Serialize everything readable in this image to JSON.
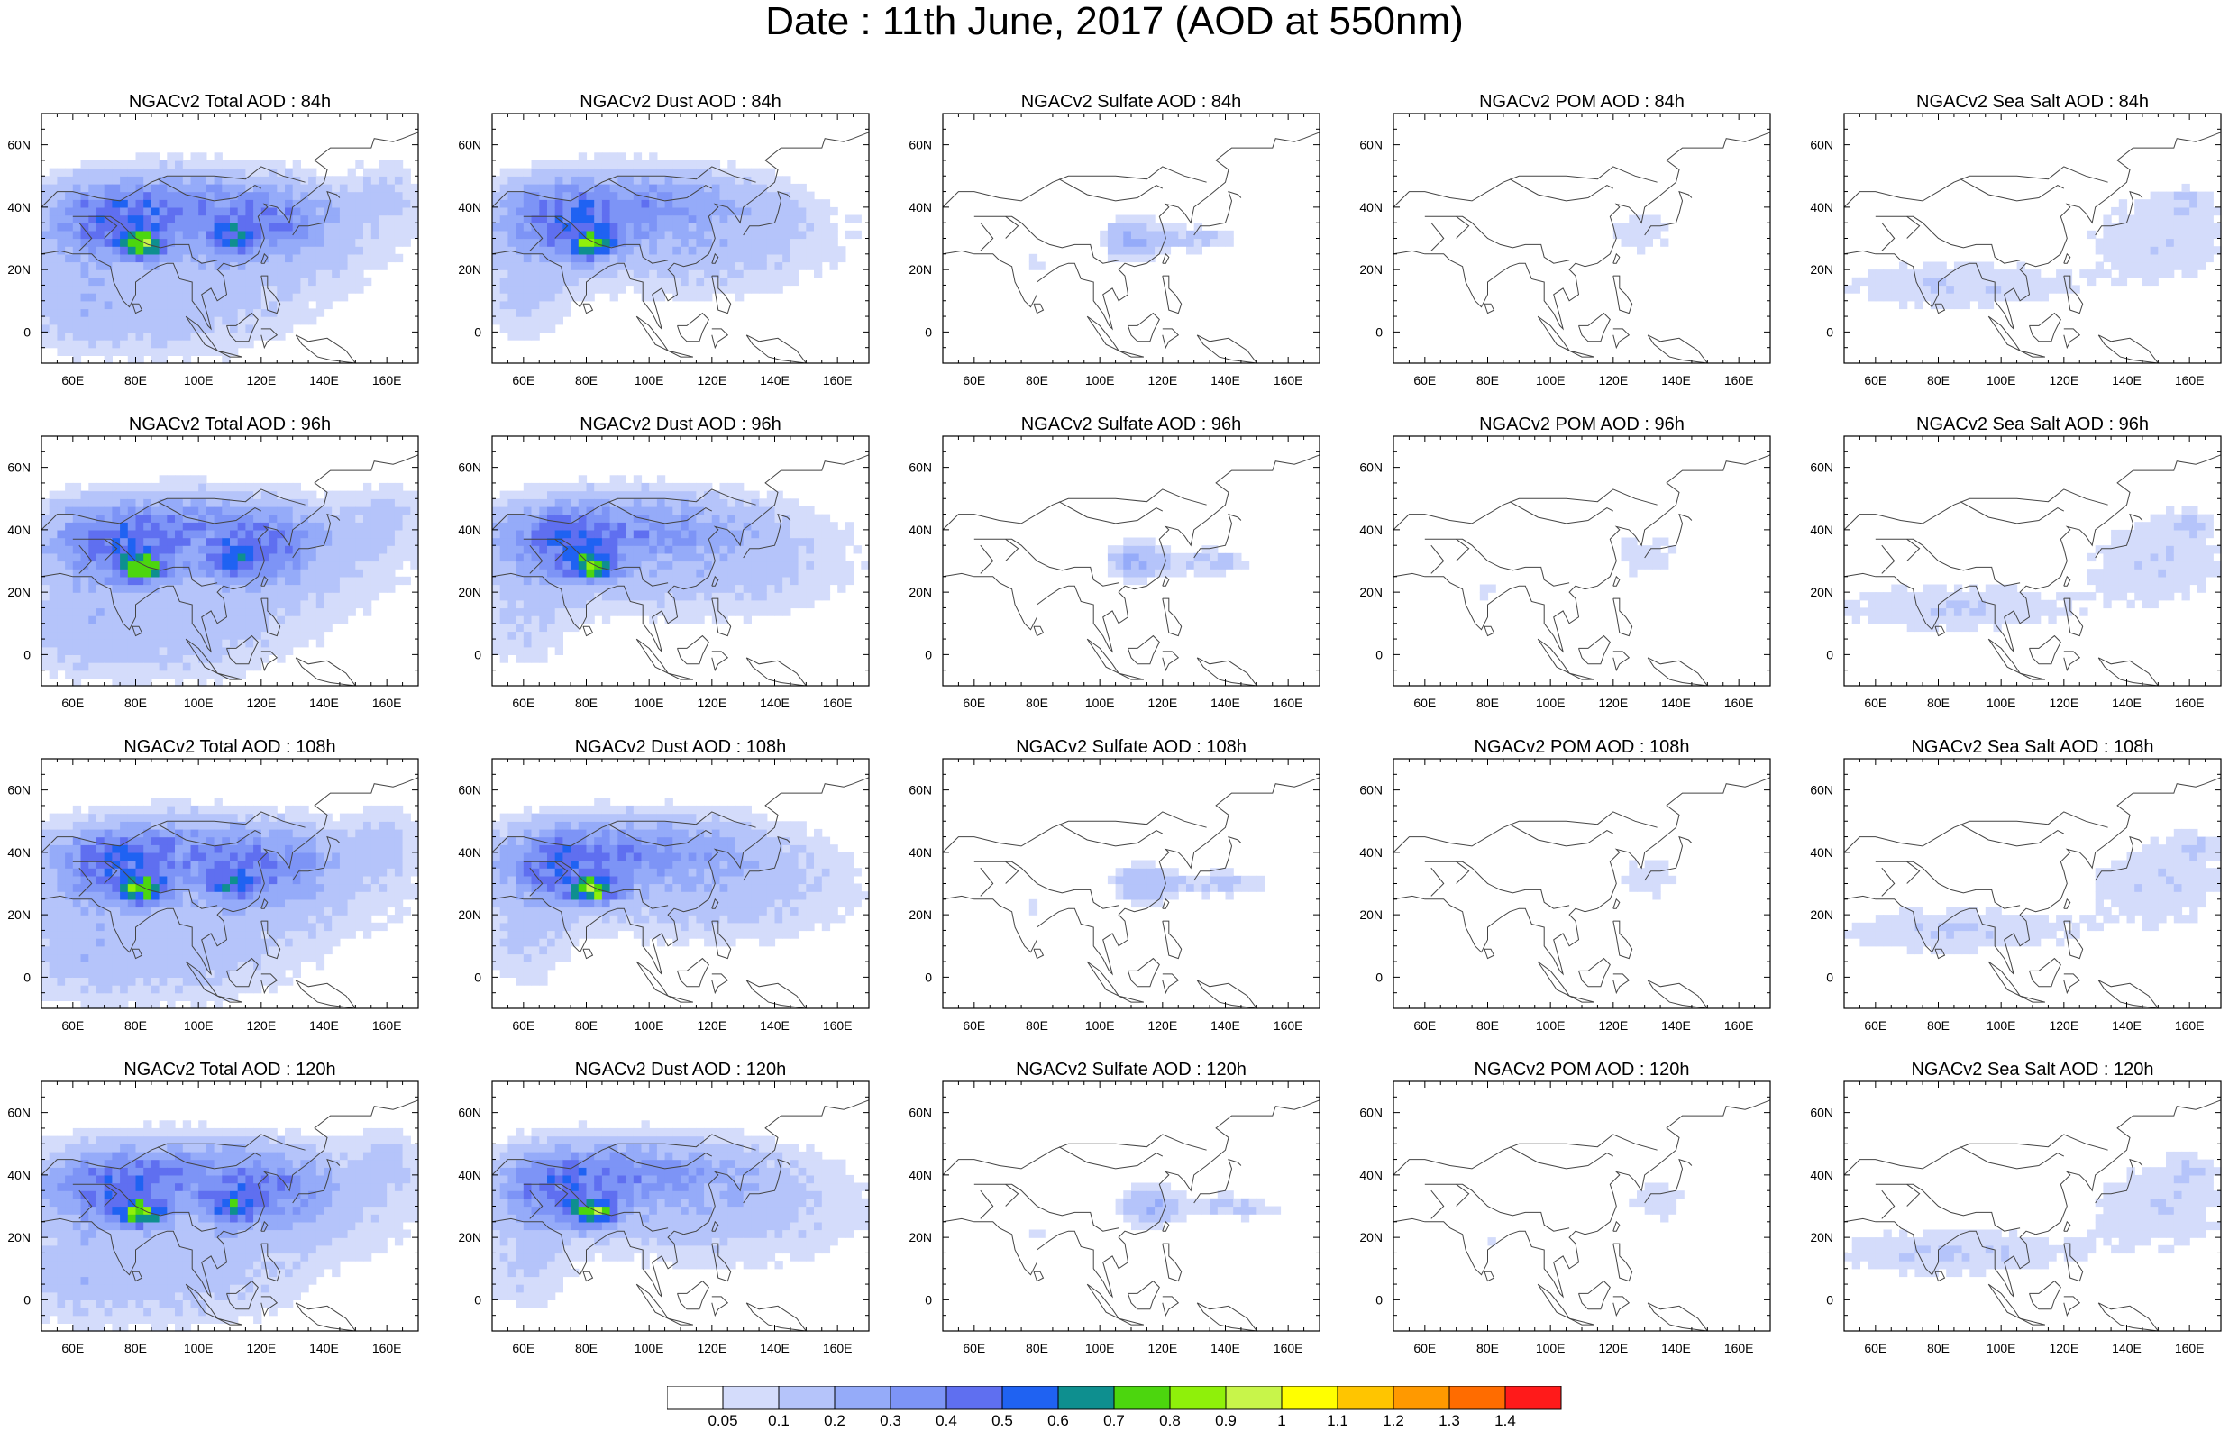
{
  "title": "Date : 11th June, 2017 (AOD at 550nm)",
  "colors": {
    "palette": [
      "#ffffff",
      "#d4dcfb",
      "#b5c4fa",
      "#95abf9",
      "#7d94f6",
      "#5f6ff0",
      "#1f62f2",
      "#0e8f8f",
      "#4cd60e",
      "#8ff00a",
      "#c8f54a",
      "#ffff00",
      "#ffc500",
      "#ff9900",
      "#ff6c00",
      "#ff1a1a"
    ],
    "coastline": "#444444"
  },
  "map": {
    "lon_labels": [
      "60E",
      "80E",
      "100E",
      "120E",
      "140E",
      "160E"
    ],
    "lat_labels": [
      "60N",
      "40N",
      "20N",
      "0"
    ]
  },
  "rows": [
    {
      "hour": "84h",
      "panels": [
        {
          "title": "NGACv2 Total AOD : 84h",
          "species": "total"
        },
        {
          "title": "NGACv2 Dust AOD : 84h",
          "species": "dust"
        },
        {
          "title": "NGACv2 Sulfate AOD : 84h",
          "species": "sulfate"
        },
        {
          "title": "NGACv2 POM AOD : 84h",
          "species": "pom"
        },
        {
          "title": "NGACv2 Sea Salt AOD : 84h",
          "species": "seasalt"
        }
      ]
    },
    {
      "hour": "96h",
      "panels": [
        {
          "title": "NGACv2 Total AOD : 96h",
          "species": "total"
        },
        {
          "title": "NGACv2 Dust AOD : 96h",
          "species": "dust"
        },
        {
          "title": "NGACv2 Sulfate AOD : 96h",
          "species": "sulfate"
        },
        {
          "title": "NGACv2 POM AOD : 96h",
          "species": "pom"
        },
        {
          "title": "NGACv2 Sea Salt AOD : 96h",
          "species": "seasalt"
        }
      ]
    },
    {
      "hour": "108h",
      "panels": [
        {
          "title": "NGACv2 Total AOD : 108h",
          "species": "total"
        },
        {
          "title": "NGACv2 Dust AOD : 108h",
          "species": "dust"
        },
        {
          "title": "NGACv2 Sulfate AOD : 108h",
          "species": "sulfate"
        },
        {
          "title": "NGACv2 POM AOD : 108h",
          "species": "pom"
        },
        {
          "title": "NGACv2 Sea Salt AOD : 108h",
          "species": "seasalt"
        }
      ]
    },
    {
      "hour": "120h",
      "panels": [
        {
          "title": "NGACv2 Total AOD : 120h",
          "species": "total"
        },
        {
          "title": "NGACv2 Dust AOD : 120h",
          "species": "dust"
        },
        {
          "title": "NGACv2 Sulfate AOD : 120h",
          "species": "sulfate"
        },
        {
          "title": "NGACv2 POM AOD : 120h",
          "species": "pom"
        },
        {
          "title": "NGACv2 Sea Salt  AOD : 120h",
          "species": "seasalt"
        }
      ]
    }
  ],
  "colorbar": {
    "labels": [
      "0.05",
      "0.1",
      "0.2",
      "0.3",
      "0.4",
      "0.5",
      "0.6",
      "0.7",
      "0.8",
      "0.9",
      "1",
      "1.1",
      "1.2",
      "1.3",
      "1.4"
    ]
  }
}
